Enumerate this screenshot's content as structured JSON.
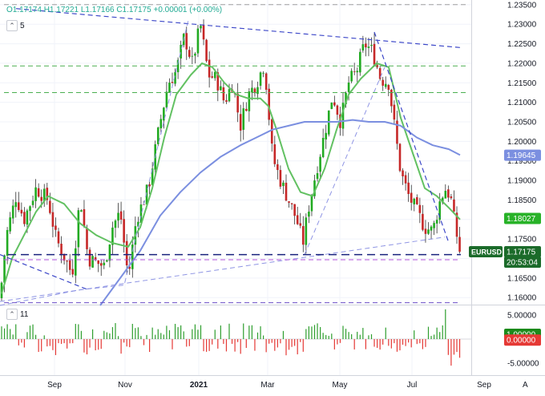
{
  "header": {
    "ohlc": "O1.17174 H1.17221 L1.17166 C1.17175 +0.00001 (+0.00%)",
    "ma_count_1": "5",
    "ma_count_2": "11",
    "collapse_icon": "chevron-up-icon"
  },
  "price_axis": {
    "ticks": [
      "1.23500",
      "1.23000",
      "1.22500",
      "1.22000",
      "1.21500",
      "1.21000",
      "1.20500",
      "1.20000",
      "1.19500",
      "1.19000",
      "1.18500",
      "1.18000",
      "1.17500",
      "1.17000",
      "1.16500",
      "1.16000"
    ],
    "labels": [
      {
        "text": "1.19645",
        "value": 1.19645,
        "color": "#7b8fe0",
        "text_color": "#ffffff"
      },
      {
        "text": "1.18027",
        "value": 1.18027,
        "color": "#27b227",
        "text_color": "#ffffff"
      },
      {
        "text": "EURUSD",
        "value": 1.17175,
        "color": "#1b6b2a",
        "text_color": "#ffffff"
      },
      {
        "text": "1.17175",
        "value": 1.17175,
        "color": "#1b6b2a",
        "text_color": "#ffffff"
      },
      {
        "text": "20:53:04",
        "value": 1.1695,
        "color": "#1b6b2a",
        "text_color": "#ffffff"
      }
    ]
  },
  "osc_axis": {
    "ticks": [
      "5.00000",
      "-5.00000"
    ],
    "labels": [
      {
        "text": "1.00000",
        "value": 1.0,
        "color": "#1b8a1b",
        "text_color": "#ffffff"
      },
      {
        "text": "0.00000",
        "value": -0.2,
        "color": "#e53935",
        "text_color": "#ffffff"
      }
    ]
  },
  "time_axis": {
    "ticks": [
      "Sep",
      "Nov",
      "2021",
      "Mar",
      "May",
      "Jul",
      "Sep"
    ],
    "bold_tick": "2021",
    "corner_label": "A"
  },
  "chart_data": {
    "type": "candlestick",
    "symbol": "EURUSD",
    "price_range": [
      1.1582,
      1.2362
    ],
    "osc_range": [
      -7.5,
      7.0
    ],
    "last": {
      "open": 1.17174,
      "high": 1.17221,
      "low": 1.17166,
      "close": 1.17175,
      "change": 1e-05,
      "change_pct": 0.0
    },
    "close_anchors": [
      [
        0,
        1.1598
      ],
      [
        8,
        1.176
      ],
      [
        20,
        1.186
      ],
      [
        30,
        1.18
      ],
      [
        45,
        1.188
      ],
      [
        60,
        1.185
      ],
      [
        70,
        1.175
      ],
      [
        90,
        1.166
      ],
      [
        100,
        1.186
      ],
      [
        110,
        1.17
      ],
      [
        130,
        1.168
      ],
      [
        140,
        1.178
      ],
      [
        150,
        1.182
      ],
      [
        160,
        1.165
      ],
      [
        170,
        1.18
      ],
      [
        185,
        1.188
      ],
      [
        200,
        1.205
      ],
      [
        210,
        1.215
      ],
      [
        220,
        1.218
      ],
      [
        230,
        1.227
      ],
      [
        240,
        1.22
      ],
      [
        250,
        1.23
      ],
      [
        260,
        1.217
      ],
      [
        270,
        1.216
      ],
      [
        280,
        1.21
      ],
      [
        290,
        1.215
      ],
      [
        300,
        1.204
      ],
      [
        310,
        1.212
      ],
      [
        320,
        1.215
      ],
      [
        330,
        1.22
      ],
      [
        340,
        1.196
      ],
      [
        350,
        1.19
      ],
      [
        360,
        1.185
      ],
      [
        370,
        1.18
      ],
      [
        378,
        1.174
      ],
      [
        385,
        1.183
      ],
      [
        395,
        1.193
      ],
      [
        405,
        1.202
      ],
      [
        415,
        1.212
      ],
      [
        425,
        1.205
      ],
      [
        435,
        1.215
      ],
      [
        445,
        1.218
      ],
      [
        455,
        1.225
      ],
      [
        465,
        1.223
      ],
      [
        475,
        1.216
      ],
      [
        485,
        1.215
      ],
      [
        492,
        1.204
      ],
      [
        500,
        1.192
      ],
      [
        510,
        1.186
      ],
      [
        520,
        1.182
      ],
      [
        530,
        1.178
      ],
      [
        540,
        1.177
      ],
      [
        548,
        1.184
      ],
      [
        555,
        1.188
      ],
      [
        562,
        1.186
      ],
      [
        568,
        1.178
      ],
      [
        574,
        1.17175
      ]
    ],
    "moving_averages": [
      {
        "color": "#62c162",
        "points": [
          [
            2,
            1.161
          ],
          [
            15,
            1.17
          ],
          [
            30,
            1.176
          ],
          [
            45,
            1.182
          ],
          [
            60,
            1.186
          ],
          [
            80,
            1.184
          ],
          [
            100,
            1.179
          ],
          [
            120,
            1.176
          ],
          [
            140,
            1.174
          ],
          [
            160,
            1.173
          ],
          [
            175,
            1.178
          ],
          [
            190,
            1.188
          ],
          [
            205,
            1.201
          ],
          [
            220,
            1.212
          ],
          [
            238,
            1.217
          ],
          [
            252,
            1.22
          ],
          [
            265,
            1.219
          ],
          [
            280,
            1.215
          ],
          [
            295,
            1.212
          ],
          [
            310,
            1.211
          ],
          [
            325,
            1.211
          ],
          [
            335,
            1.209
          ],
          [
            345,
            1.203
          ],
          [
            360,
            1.193
          ],
          [
            375,
            1.187
          ],
          [
            390,
            1.186
          ],
          [
            405,
            1.193
          ],
          [
            420,
            1.203
          ],
          [
            435,
            1.212
          ],
          [
            450,
            1.216
          ],
          [
            470,
            1.22
          ],
          [
            485,
            1.219
          ],
          [
            500,
            1.206
          ],
          [
            515,
            1.197
          ],
          [
            530,
            1.188
          ],
          [
            545,
            1.186
          ],
          [
            560,
            1.183
          ],
          [
            574,
            1.18
          ]
        ]
      },
      {
        "color": "#7b8fe0",
        "points": [
          [
            125,
            1.158
          ],
          [
            150,
            1.165
          ],
          [
            175,
            1.172
          ],
          [
            200,
            1.181
          ],
          [
            225,
            1.187
          ],
          [
            250,
            1.192
          ],
          [
            275,
            1.196
          ],
          [
            300,
            1.199
          ],
          [
            320,
            1.201
          ],
          [
            340,
            1.203
          ],
          [
            360,
            1.204
          ],
          [
            380,
            1.205
          ],
          [
            400,
            1.205
          ],
          [
            420,
            1.205
          ],
          [
            440,
            1.2055
          ],
          [
            460,
            1.205
          ],
          [
            480,
            1.205
          ],
          [
            500,
            1.204
          ],
          [
            520,
            1.201
          ],
          [
            540,
            1.199
          ],
          [
            560,
            1.198
          ],
          [
            574,
            1.1965
          ]
        ]
      }
    ],
    "lines": [
      {
        "color": "#3b46c8",
        "dash": "6,4",
        "width": 1.2,
        "points": [
          [
            20,
            1.234
          ],
          [
            575,
            1.224
          ]
        ]
      },
      {
        "color": "#3b46c8",
        "dash": "6,4",
        "width": 1.2,
        "points": [
          [
            0,
            1.171
          ],
          [
            110,
            1.162
          ]
        ]
      },
      {
        "color": "#3b46c8",
        "dash": "6,4",
        "width": 1.2,
        "points": [
          [
            467,
            1.228
          ],
          [
            560,
            1.174
          ]
        ]
      },
      {
        "color": "#8f95e4",
        "dash": "6,4",
        "width": 1.0,
        "points": [
          [
            0,
            1.158
          ],
          [
            100,
            1.162
          ],
          [
            155,
            1.1632
          ],
          [
            235,
            1.231
          ]
        ]
      },
      {
        "color": "#8f95e4",
        "dash": "6,4",
        "width": 1.0,
        "points": [
          [
            0,
            1.159
          ],
          [
            555,
            1.1755
          ]
        ]
      },
      {
        "color": "#8f95e4",
        "dash": "6,4",
        "width": 1.0,
        "points": [
          [
            380,
            1.171
          ],
          [
            480,
            1.219
          ]
        ]
      },
      {
        "color": "#1a237e",
        "dash": "10,6",
        "width": 1.5,
        "points": [
          [
            10,
            1.171
          ],
          [
            575,
            1.171
          ]
        ]
      },
      {
        "color": "#b050d8",
        "dash": "6,4",
        "width": 1.0,
        "points": [
          [
            5,
            1.1697
          ],
          [
            575,
            1.1697
          ]
        ]
      },
      {
        "color": "#6b4fc8",
        "dash": "6,4",
        "width": 1.0,
        "points": [
          [
            5,
            1.1587
          ],
          [
            575,
            1.1587
          ]
        ]
      },
      {
        "color": "#4caf50",
        "dash": "6,4",
        "width": 1.0,
        "points": [
          [
            5,
            1.2193
          ],
          [
            585,
            1.2193
          ]
        ]
      },
      {
        "color": "#4caf50",
        "dash": "6,4",
        "width": 1.0,
        "points": [
          [
            5,
            1.2125
          ],
          [
            585,
            1.2125
          ]
        ]
      },
      {
        "color": "#9e9e9e",
        "dash": "6,4",
        "width": 1.0,
        "points": [
          [
            5,
            1.235
          ],
          [
            585,
            1.235
          ]
        ]
      }
    ],
    "candle_colors": {
      "up": "#22ab22",
      "down": "#c62828",
      "wick": "#333333"
    },
    "osc_colors": {
      "up": "#2e9e2e",
      "down": "#e53935"
    }
  }
}
